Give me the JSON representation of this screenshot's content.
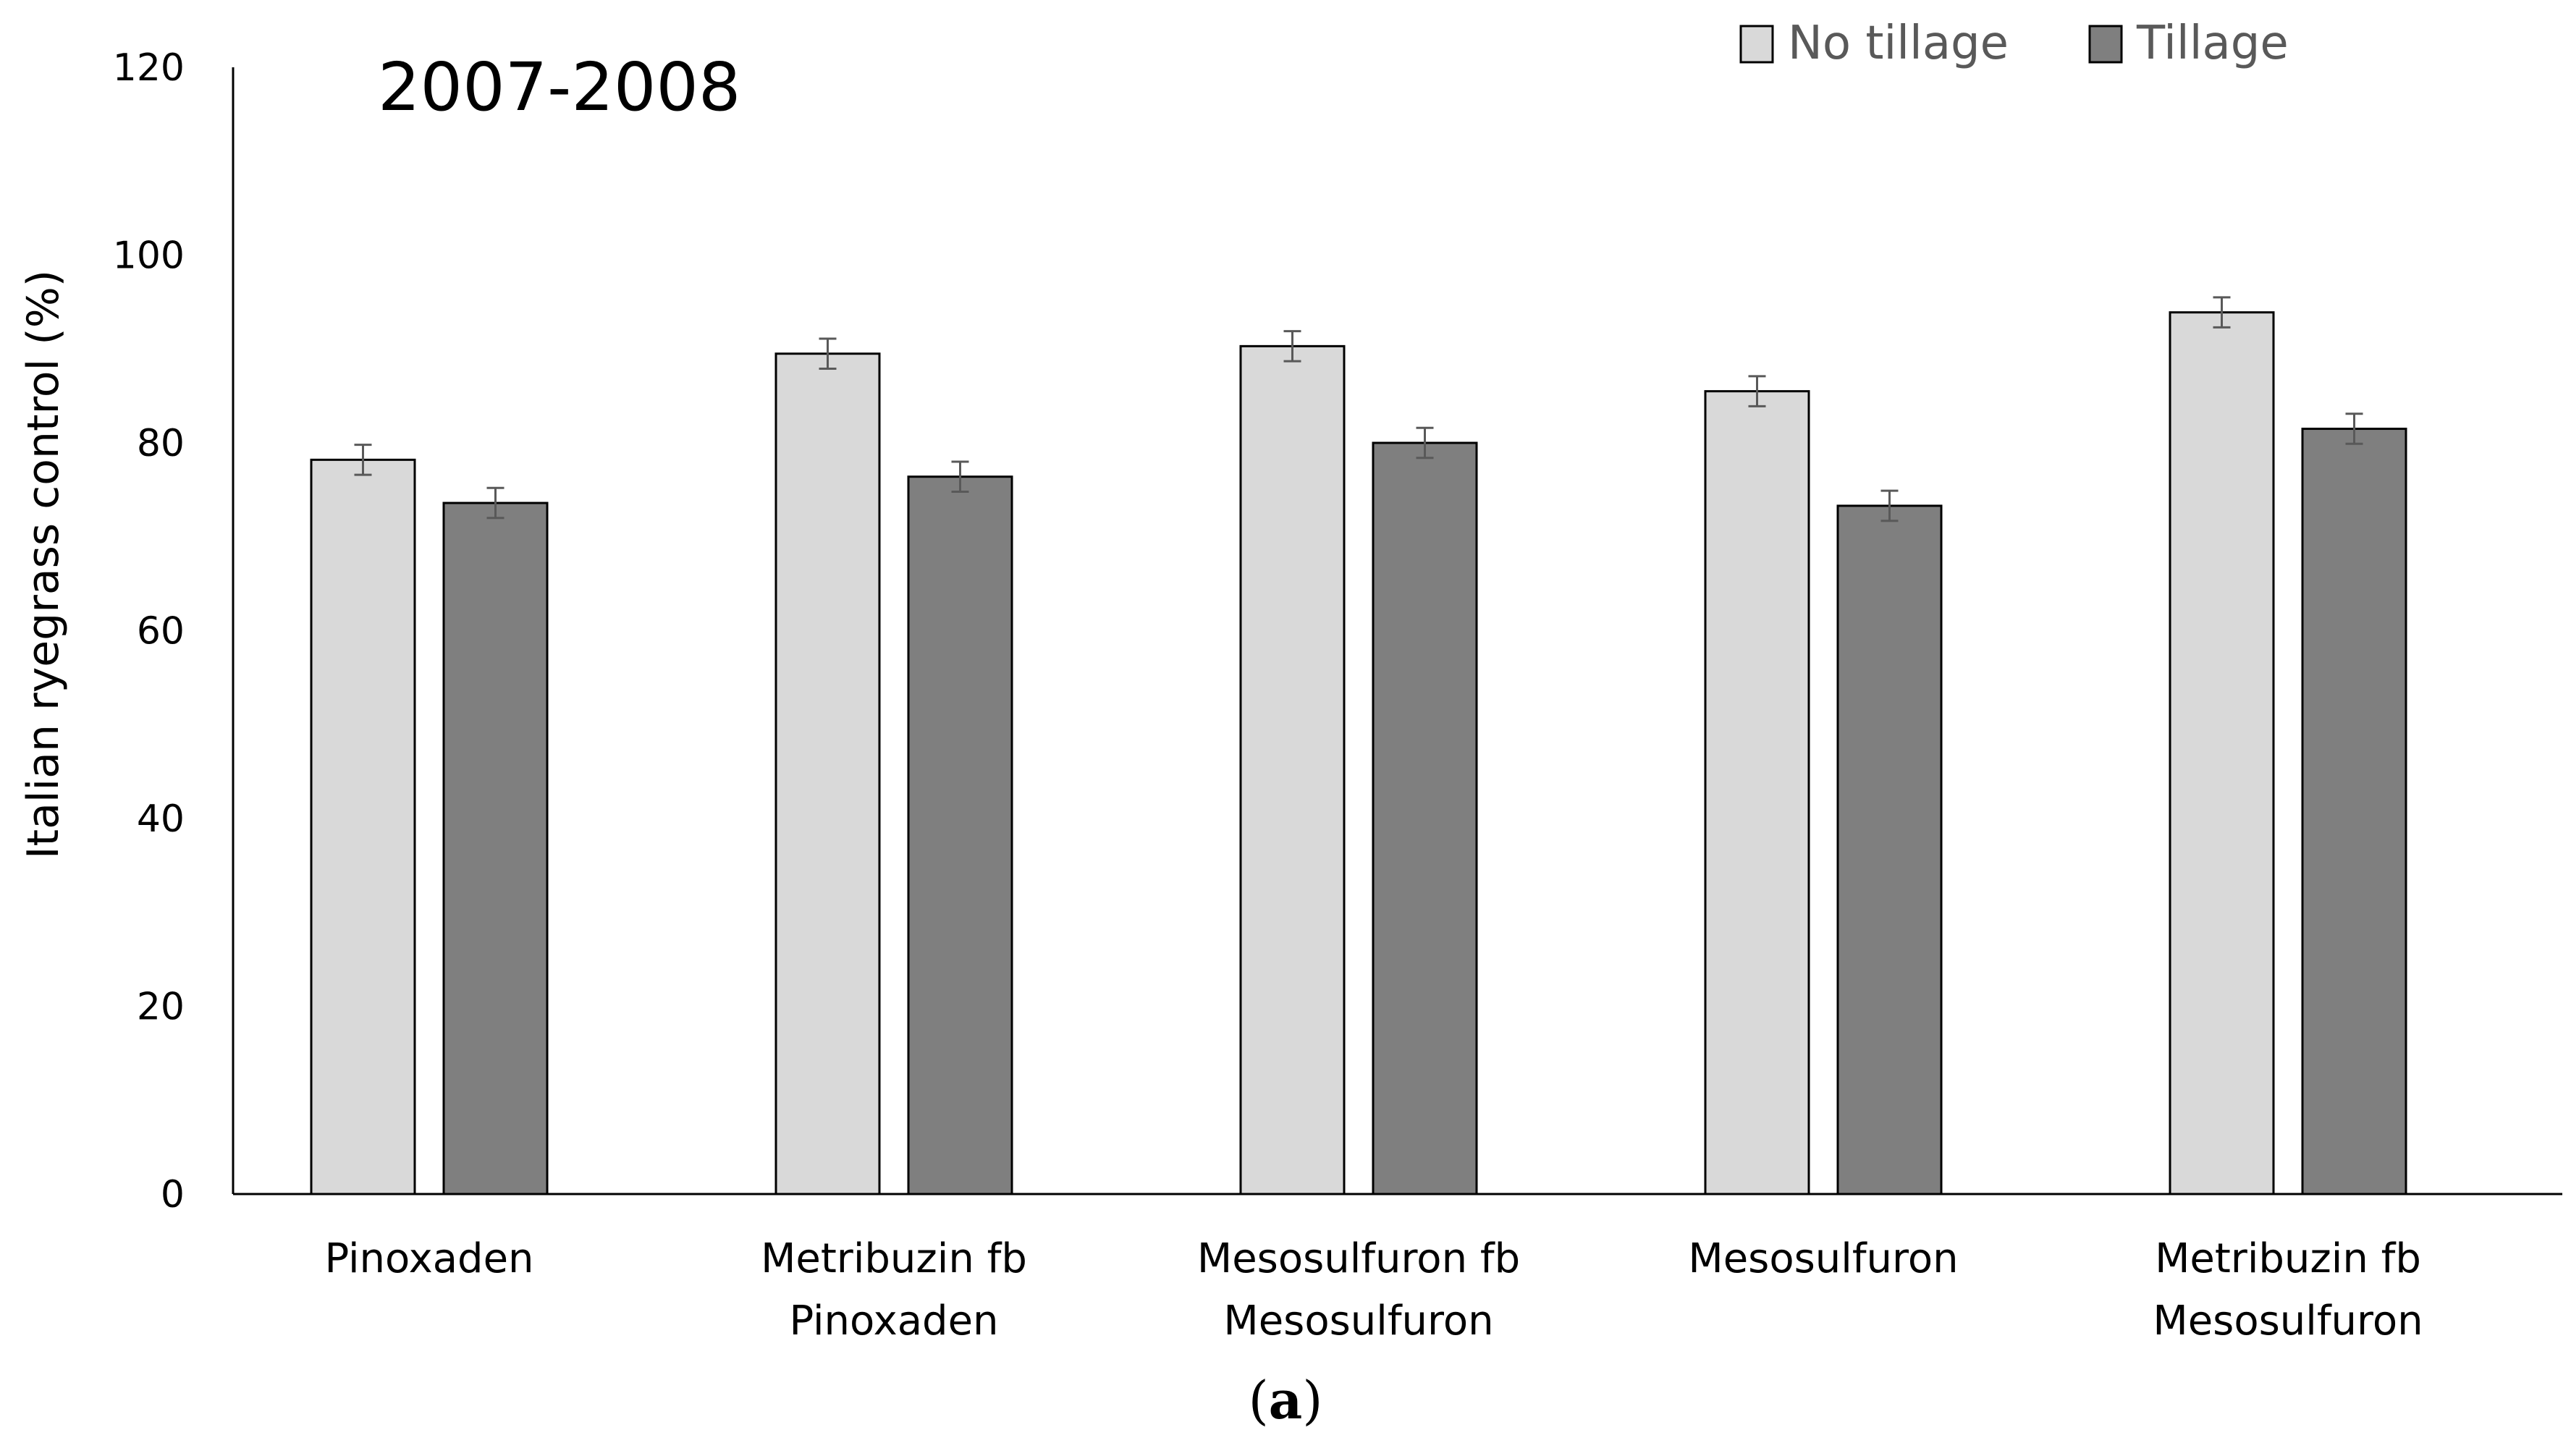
{
  "chart_data": {
    "type": "bar",
    "title": "2007-2008",
    "panel_label": "(a)",
    "panel_letter": "a",
    "xlabel": "",
    "ylabel": "Italian ryegrass control (%)",
    "ylim": [
      0,
      120
    ],
    "yticks": [
      0,
      20,
      40,
      60,
      80,
      100,
      120
    ],
    "categories": [
      [
        "Pinoxaden"
      ],
      [
        "Metribuzin fb",
        "Pinoxaden"
      ],
      [
        "Mesosulfuron fb",
        "Mesosulfuron"
      ],
      [
        "Mesosulfuron"
      ],
      [
        "Metribuzin fb",
        "Mesosulfuron"
      ]
    ],
    "series": [
      {
        "name": "No tillage",
        "color": "#d9d9d9",
        "values": [
          78.2,
          89.5,
          90.3,
          85.5,
          93.9
        ],
        "errors": [
          1.6,
          1.6,
          1.6,
          1.6,
          1.6
        ]
      },
      {
        "name": "Tillage",
        "color": "#7f7f7f",
        "values": [
          73.6,
          76.4,
          80.0,
          73.3,
          81.5
        ],
        "errors": [
          1.6,
          1.6,
          1.6,
          1.6,
          1.6
        ]
      }
    ],
    "grid": false,
    "legend_position": "top-right",
    "error_bar_color": "#595959"
  }
}
